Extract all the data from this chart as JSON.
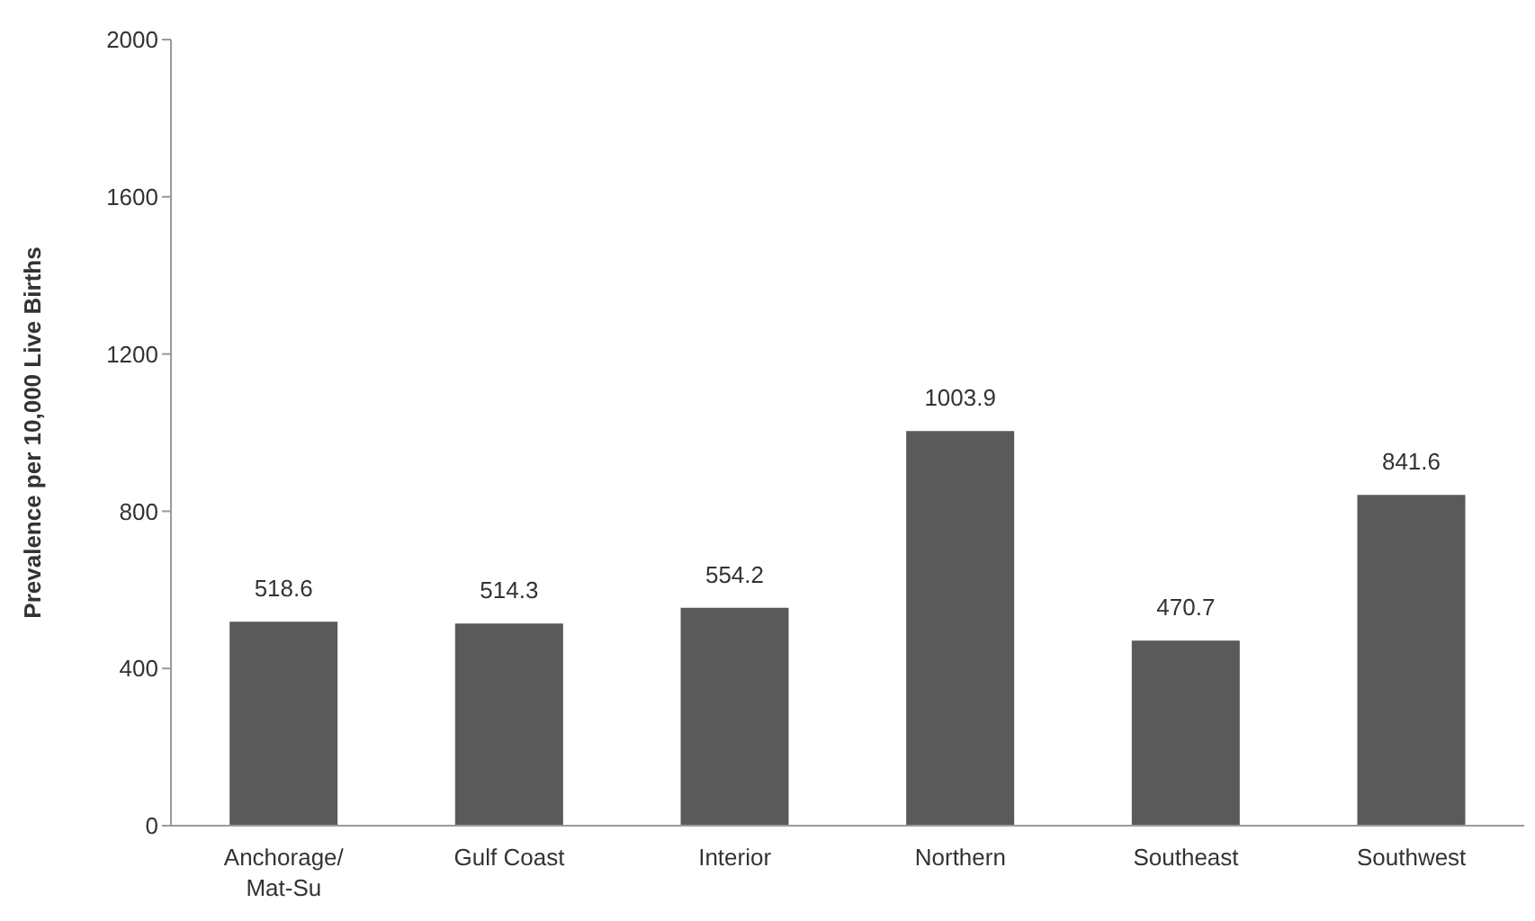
{
  "chart_data": {
    "type": "bar",
    "ylabel": "Prevalence per 10,000 Live Births",
    "categories": [
      "Anchorage/ Mat-Su",
      "Gulf Coast",
      "Interior",
      "Northern",
      "Southeast",
      "Southwest"
    ],
    "values": [
      518.6,
      514.3,
      554.2,
      1003.9,
      470.7,
      841.6
    ],
    "color": "#5a5a5a",
    "ylim": [
      0,
      2000
    ],
    "yticks": [
      0,
      400,
      800,
      1200,
      1600,
      2000
    ],
    "data_labels": true
  }
}
